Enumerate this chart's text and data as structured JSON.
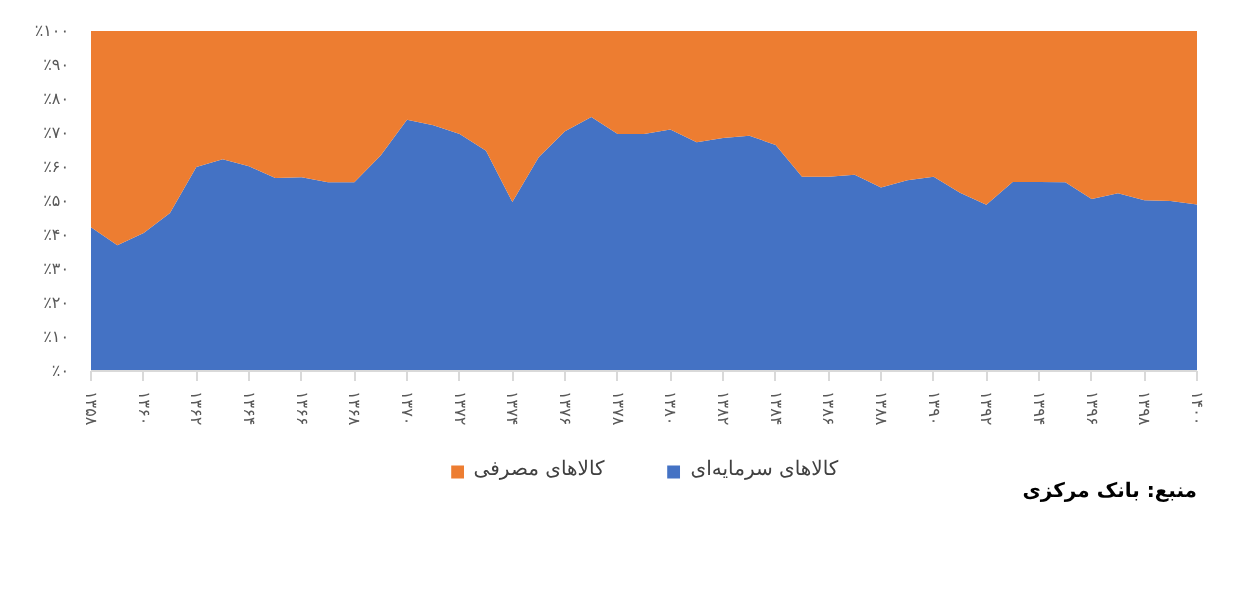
{
  "chart_data": {
    "type": "area",
    "stacked": true,
    "x": [
      1358,
      1359,
      1360,
      1361,
      1362,
      1363,
      1364,
      1365,
      1366,
      1367,
      1368,
      1369,
      1370,
      1371,
      1372,
      1373,
      1374,
      1375,
      1376,
      1377,
      1378,
      1379,
      1380,
      1381,
      1382,
      1383,
      1384,
      1385,
      1386,
      1387,
      1388,
      1389,
      1390,
      1391,
      1392,
      1393,
      1394,
      1395,
      1396,
      1397,
      1398,
      1399,
      1400
    ],
    "series": [
      {
        "name": "کالاهای سرمایه‌ای",
        "color": "#4472c4",
        "values": [
          42.3,
          37,
          40.6,
          46.5,
          60,
          62.3,
          60.2,
          56.8,
          57,
          55.5,
          55.5,
          63.4,
          73.9,
          72.3,
          69.7,
          64.8,
          49.7,
          62.9,
          70.5,
          74.7,
          69.7,
          69.7,
          71,
          67.3,
          68.5,
          69.2,
          66.5,
          57.1,
          57.1,
          57.7,
          54,
          56.1,
          57.1,
          52.4,
          48.9,
          55.6,
          55.6,
          55.5,
          50.6,
          52.3,
          50.2,
          50,
          49
        ]
      },
      {
        "name": "کالاهای مصرفی",
        "color": "#ed7d31",
        "values": [
          57.7,
          63,
          59.4,
          53.5,
          40,
          37.7,
          39.8,
          43.2,
          43,
          44.5,
          44.5,
          36.6,
          26.1,
          27.7,
          30.3,
          35.2,
          50.3,
          37.1,
          29.5,
          25.3,
          30.3,
          30.3,
          29,
          32.7,
          31.5,
          30.8,
          33.5,
          42.9,
          42.9,
          42.3,
          46,
          43.9,
          42.9,
          47.6,
          51.1,
          44.4,
          44.4,
          44.5,
          49.4,
          47.7,
          49.8,
          50,
          51
        ]
      }
    ],
    "xlim": [
      1358,
      1400
    ],
    "xticks": [
      {
        "value": 1358,
        "label": "۱۳۵۸"
      },
      {
        "value": 1360,
        "label": "۱۳۶۰"
      },
      {
        "value": 1362,
        "label": "۱۳۶۲"
      },
      {
        "value": 1364,
        "label": "۱۳۶۴"
      },
      {
        "value": 1366,
        "label": "۱۳۶۶"
      },
      {
        "value": 1368,
        "label": "۱۳۶۸"
      },
      {
        "value": 1370,
        "label": "۱۳۷۰"
      },
      {
        "value": 1372,
        "label": "۱۳۷۲"
      },
      {
        "value": 1374,
        "label": "۱۳۷۴"
      },
      {
        "value": 1376,
        "label": "۱۳۷۶"
      },
      {
        "value": 1378,
        "label": "۱۳۷۸"
      },
      {
        "value": 1380,
        "label": "۱۳۸۰"
      },
      {
        "value": 1382,
        "label": "۱۳۸۲"
      },
      {
        "value": 1384,
        "label": "۱۳۸۴"
      },
      {
        "value": 1386,
        "label": "۱۳۸۶"
      },
      {
        "value": 1388,
        "label": "۱۳۸۸"
      },
      {
        "value": 1390,
        "label": "۱۳۹۰"
      },
      {
        "value": 1392,
        "label": "۱۳۹۲"
      },
      {
        "value": 1394,
        "label": "۱۳۹۴"
      },
      {
        "value": 1396,
        "label": "۱۳۹۶"
      },
      {
        "value": 1398,
        "label": "۱۳۹۸"
      },
      {
        "value": 1400,
        "label": "۱۴۰۰"
      }
    ],
    "ylim": [
      0,
      100
    ],
    "yticks": [
      {
        "value": 0,
        "label": "٪۰"
      },
      {
        "value": 10,
        "label": "٪۱۰"
      },
      {
        "value": 20,
        "label": "٪۲۰"
      },
      {
        "value": 30,
        "label": "٪۳۰"
      },
      {
        "value": 40,
        "label": "٪۴۰"
      },
      {
        "value": 50,
        "label": "٪۵۰"
      },
      {
        "value": 60,
        "label": "٪۶۰"
      },
      {
        "value": 70,
        "label": "٪۷۰"
      },
      {
        "value": 80,
        "label": "٪۸۰"
      },
      {
        "value": 90,
        "label": "٪۹۰"
      },
      {
        "value": 100,
        "label": "٪۱۰۰"
      }
    ],
    "grid": false,
    "legend": "bottom",
    "annotations": [
      "منبع: بانک مرکزی"
    ]
  }
}
